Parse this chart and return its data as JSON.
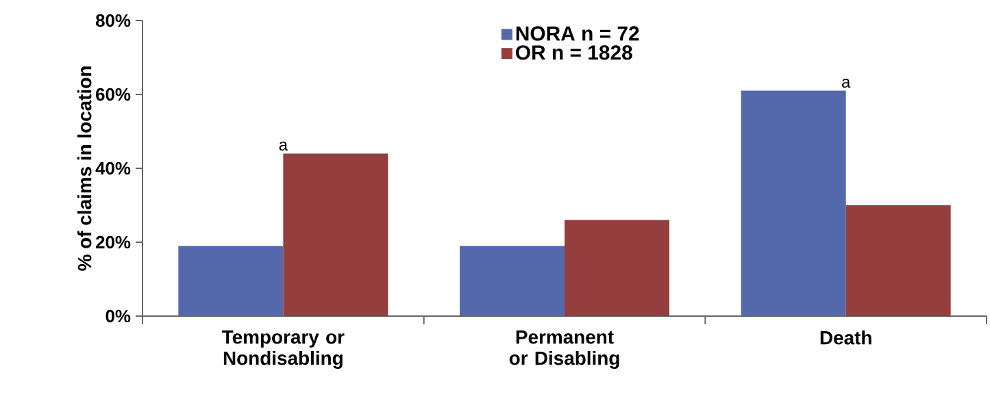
{
  "chart_data": {
    "type": "bar",
    "categories": [
      "Temporary or Nondisabling",
      "Permanent or Disabling",
      "Death"
    ],
    "series": [
      {
        "name": "NORA n = 72",
        "color": "#5468ac",
        "values": [
          19,
          19,
          61
        ]
      },
      {
        "name": "OR n = 1828",
        "color": "#943f3e",
        "values": [
          44,
          26,
          30
        ]
      }
    ],
    "ylabel": "% of claims in location",
    "ylim": [
      0,
      80
    ],
    "yticks": [
      {
        "value": 0,
        "label": "0%"
      },
      {
        "value": 20,
        "label": "20%"
      },
      {
        "value": 40,
        "label": "40%"
      },
      {
        "value": 60,
        "label": "60%"
      },
      {
        "value": 80,
        "label": "80%"
      }
    ],
    "annotations": [
      {
        "text": "a",
        "x": "Temporary or Nondisabling",
        "y": 44
      },
      {
        "text": "a",
        "x": "Death",
        "y": 61
      }
    ],
    "legend": "top",
    "grid": false
  }
}
